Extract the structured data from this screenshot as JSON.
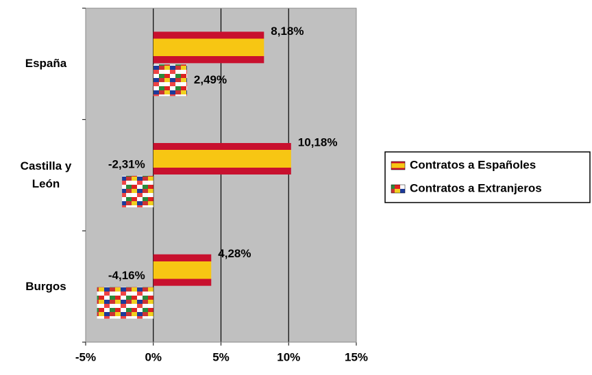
{
  "chart_data": {
    "type": "bar",
    "orientation": "horizontal",
    "categories": [
      "España",
      "Castilla y León",
      "Burgos"
    ],
    "series": [
      {
        "name": "Contratos a Españoles",
        "color": "#f7c613",
        "values": [
          8.18,
          10.18,
          4.28
        ],
        "value_labels": [
          "8,18%",
          "10,18%",
          "4,28%"
        ]
      },
      {
        "name": "Contratos a Extranjeros",
        "color": "#5a6fb0",
        "values": [
          2.49,
          -2.31,
          -4.16
        ],
        "value_labels": [
          "2,49%",
          "-2,31%",
          "-4,16%"
        ]
      }
    ],
    "xlim": [
      -5,
      15
    ],
    "xticks": [
      {
        "value": -5,
        "label": "-5%"
      },
      {
        "value": 0,
        "label": "0%"
      },
      {
        "value": 5,
        "label": "5%"
      },
      {
        "value": 10,
        "label": "10%"
      },
      {
        "value": 15,
        "label": "15%"
      }
    ],
    "grid": true,
    "legend": "right"
  }
}
